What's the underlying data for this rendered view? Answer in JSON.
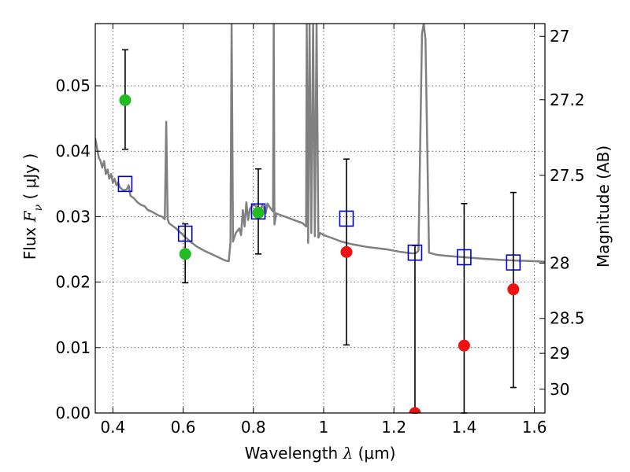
{
  "chart_data": {
    "type": "scatter",
    "xlabel": {
      "prefix": "Wavelength  ",
      "symbol": "λ",
      "suffix": " (μm)"
    },
    "ylabel": {
      "prefix": "Flux  ",
      "symbol": "F",
      "subscript": "ν",
      "suffix": "  ( μJy )"
    },
    "y2label": "Magnitude (AB)",
    "xlim": [
      0.35,
      1.63
    ],
    "ylim": [
      0.0,
      0.0595
    ],
    "grid": true,
    "x_ticks": [
      {
        "v": 0.4,
        "label": "0.4"
      },
      {
        "v": 0.6,
        "label": "0.6"
      },
      {
        "v": 0.8,
        "label": "0.8"
      },
      {
        "v": 1.0,
        "label": "1"
      },
      {
        "v": 1.2,
        "label": "1.2"
      },
      {
        "v": 1.4,
        "label": "1.4"
      },
      {
        "v": 1.6,
        "label": "1.6"
      }
    ],
    "y_ticks": [
      {
        "v": 0.0,
        "label": "0.00"
      },
      {
        "v": 0.01,
        "label": "0.01"
      },
      {
        "v": 0.02,
        "label": "0.02"
      },
      {
        "v": 0.03,
        "label": "0.03"
      },
      {
        "v": 0.04,
        "label": "0.04"
      },
      {
        "v": 0.05,
        "label": "0.05"
      }
    ],
    "y2_ticks": [
      {
        "mag": 27,
        "label": "27"
      },
      {
        "mag": 27.2,
        "label": "27.2"
      },
      {
        "mag": 27.5,
        "label": "27.5"
      },
      {
        "mag": 28,
        "label": "28"
      },
      {
        "mag": 28.5,
        "label": "28.5"
      },
      {
        "mag": 29,
        "label": "29"
      },
      {
        "mag": 30,
        "label": "30"
      }
    ],
    "colors": {
      "model": "#808080",
      "model_photometry": "#0000cc",
      "detected": "#22bb22",
      "undetected": "#ee1111",
      "errorbar": "#000000"
    },
    "model_spectrum": [
      [
        0.35,
        0.042
      ],
      [
        0.355,
        0.0405
      ],
      [
        0.36,
        0.039
      ],
      [
        0.365,
        0.0385
      ],
      [
        0.37,
        0.0375
      ],
      [
        0.375,
        0.0385
      ],
      [
        0.38,
        0.0365
      ],
      [
        0.385,
        0.0372
      ],
      [
        0.39,
        0.0358
      ],
      [
        0.395,
        0.0365
      ],
      [
        0.4,
        0.0352
      ],
      [
        0.405,
        0.0358
      ],
      [
        0.41,
        0.0348
      ],
      [
        0.415,
        0.0352
      ],
      [
        0.42,
        0.0345
      ],
      [
        0.43,
        0.034
      ],
      [
        0.44,
        0.0342
      ],
      [
        0.445,
        0.0348
      ],
      [
        0.45,
        0.0332
      ],
      [
        0.46,
        0.0328
      ],
      [
        0.47,
        0.0322
      ],
      [
        0.48,
        0.0318
      ],
      [
        0.49,
        0.0316
      ],
      [
        0.5,
        0.031
      ],
      [
        0.51,
        0.0308
      ],
      [
        0.52,
        0.0305
      ],
      [
        0.53,
        0.0302
      ],
      [
        0.54,
        0.03
      ],
      [
        0.548,
        0.0296
      ],
      [
        0.552,
        0.0445
      ],
      [
        0.556,
        0.0296
      ],
      [
        0.56,
        0.029
      ],
      [
        0.58,
        0.0282
      ],
      [
        0.6,
        0.0272
      ],
      [
        0.62,
        0.0262
      ],
      [
        0.64,
        0.0254
      ],
      [
        0.66,
        0.0248
      ],
      [
        0.68,
        0.0243
      ],
      [
        0.7,
        0.0238
      ],
      [
        0.72,
        0.0233
      ],
      [
        0.73,
        0.0232
      ],
      [
        0.735,
        0.0262
      ],
      [
        0.738,
        0.0595
      ],
      [
        0.742,
        0.0262
      ],
      [
        0.75,
        0.0275
      ],
      [
        0.76,
        0.0282
      ],
      [
        0.765,
        0.0272
      ],
      [
        0.77,
        0.031
      ],
      [
        0.775,
        0.0285
      ],
      [
        0.78,
        0.0322
      ],
      [
        0.785,
        0.0295
      ],
      [
        0.79,
        0.0312
      ],
      [
        0.8,
        0.0318
      ],
      [
        0.81,
        0.0315
      ],
      [
        0.82,
        0.031
      ],
      [
        0.825,
        0.0318
      ],
      [
        0.83,
        0.0314
      ],
      [
        0.835,
        0.0305
      ],
      [
        0.84,
        0.032
      ],
      [
        0.85,
        0.0312
      ],
      [
        0.856,
        0.0308
      ],
      [
        0.858,
        0.0595
      ],
      [
        0.86,
        0.0288
      ],
      [
        0.865,
        0.0305
      ],
      [
        0.88,
        0.0302
      ],
      [
        0.9,
        0.0298
      ],
      [
        0.92,
        0.0294
      ],
      [
        0.94,
        0.029
      ],
      [
        0.95,
        0.0285
      ],
      [
        0.952,
        0.0595
      ],
      [
        0.956,
        0.026
      ],
      [
        0.96,
        0.0595
      ],
      [
        0.965,
        0.0275
      ],
      [
        0.97,
        0.0595
      ],
      [
        0.975,
        0.027
      ],
      [
        0.98,
        0.0595
      ],
      [
        0.985,
        0.0268
      ],
      [
        0.99,
        0.0275
      ],
      [
        1.0,
        0.0272
      ],
      [
        1.02,
        0.0268
      ],
      [
        1.05,
        0.0262
      ],
      [
        1.08,
        0.0258
      ],
      [
        1.1,
        0.0256
      ],
      [
        1.12,
        0.0254
      ],
      [
        1.15,
        0.0252
      ],
      [
        1.18,
        0.025
      ],
      [
        1.2,
        0.0248
      ],
      [
        1.22,
        0.0246
      ],
      [
        1.25,
        0.0244
      ],
      [
        1.262,
        0.0244
      ],
      [
        1.27,
        0.0248
      ],
      [
        1.28,
        0.058
      ],
      [
        1.285,
        0.0595
      ],
      [
        1.29,
        0.057
      ],
      [
        1.3,
        0.0245
      ],
      [
        1.32,
        0.0242
      ],
      [
        1.35,
        0.024
      ],
      [
        1.4,
        0.0238
      ],
      [
        1.45,
        0.0236
      ],
      [
        1.5,
        0.0234
      ],
      [
        1.55,
        0.0233
      ],
      [
        1.6,
        0.0232
      ],
      [
        1.63,
        0.0231
      ]
    ],
    "model_photometry": [
      {
        "x": 0.435,
        "y": 0.035
      },
      {
        "x": 0.606,
        "y": 0.0274
      },
      {
        "x": 0.814,
        "y": 0.0308
      },
      {
        "x": 1.065,
        "y": 0.0297
      },
      {
        "x": 1.26,
        "y": 0.0245
      },
      {
        "x": 1.4,
        "y": 0.0238
      },
      {
        "x": 1.54,
        "y": 0.023
      }
    ],
    "observed_photometry": [
      {
        "x": 0.435,
        "y": 0.0478,
        "err_lo": 0.0403,
        "err_hi": 0.0555,
        "detected": true
      },
      {
        "x": 0.606,
        "y": 0.0243,
        "err_lo": 0.0199,
        "err_hi": 0.0289,
        "detected": true
      },
      {
        "x": 0.814,
        "y": 0.0306,
        "err_lo": 0.0243,
        "err_hi": 0.0373,
        "detected": true
      },
      {
        "x": 1.065,
        "y": 0.0246,
        "err_lo": 0.0104,
        "err_hi": 0.0388,
        "detected": false
      },
      {
        "x": 1.26,
        "y": 0.0,
        "err_lo": 0.0,
        "err_hi": 0.0256,
        "detected": false
      },
      {
        "x": 1.4,
        "y": 0.0103,
        "err_lo": 0.0,
        "err_hi": 0.032,
        "detected": false
      },
      {
        "x": 1.54,
        "y": 0.0189,
        "err_lo": 0.0039,
        "err_hi": 0.0337,
        "detected": false
      }
    ]
  }
}
